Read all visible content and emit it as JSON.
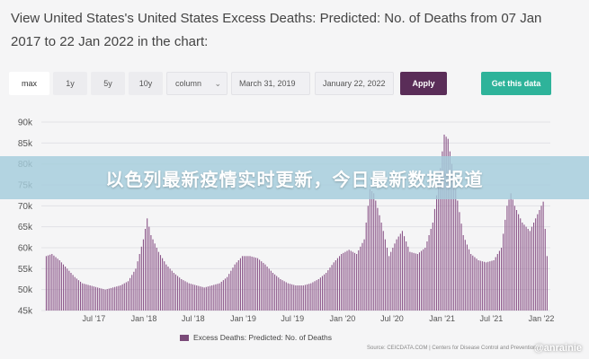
{
  "header": {
    "title": "View United States's United States Excess Deaths: Predicted: No. of Deaths from 07 Jan 2017 to 22 Jan 2022 in the chart:"
  },
  "controls": {
    "ranges": [
      "max",
      "1y",
      "5y",
      "10y"
    ],
    "active_range": "max",
    "chart_type": "column",
    "start_date": "March 31, 2019",
    "end_date": "January 22, 2022",
    "apply_label": "Apply",
    "get_data_label": "Get this data"
  },
  "banner": {
    "text": "以色列最新疫情实时更新，今日最新数据报道"
  },
  "legend": {
    "label": "Excess Deaths: Predicted: No. of Deaths"
  },
  "source": {
    "text": "Source: CEICDATA.COM | Centers for Disease Control and Prevention"
  },
  "watermark": {
    "text": "@anrainie"
  },
  "colors": {
    "bar": "#8a5488",
    "apply": "#5a2d58",
    "get_data": "#2eb39a"
  },
  "chart_data": {
    "type": "bar",
    "title": "",
    "xlabel": "",
    "ylabel": "",
    "ylim": [
      45000,
      90000
    ],
    "y_ticks": [
      45000,
      50000,
      55000,
      60000,
      65000,
      70000,
      75000,
      80000,
      85000,
      90000
    ],
    "y_tick_labels": [
      "45k",
      "50k",
      "55k",
      "60k",
      "65k",
      "70k",
      "75k",
      "80k",
      "85k",
      "90k"
    ],
    "x_tick_labels": [
      "Jul '17",
      "Jan '18",
      "Jul '18",
      "Jan '19",
      "Jul '19",
      "Jan '20",
      "Jul '20",
      "Jan '21",
      "Jul '21",
      "Jan '22"
    ],
    "x_tick_dates": [
      "2017-07-01",
      "2018-01-01",
      "2018-07-01",
      "2019-01-01",
      "2019-07-01",
      "2020-01-01",
      "2020-07-01",
      "2021-01-01",
      "2021-07-01",
      "2022-01-01"
    ],
    "series": [
      {
        "name": "Excess Deaths: Predicted: No. of Deaths",
        "points": [
          [
            "2017-01-07",
            58000
          ],
          [
            "2017-01-28",
            58500
          ],
          [
            "2017-02-25",
            57000
          ],
          [
            "2017-03-25",
            55000
          ],
          [
            "2017-04-22",
            53000
          ],
          [
            "2017-05-20",
            51500
          ],
          [
            "2017-06-17",
            51000
          ],
          [
            "2017-07-15",
            50500
          ],
          [
            "2017-08-12",
            50000
          ],
          [
            "2017-09-09",
            50500
          ],
          [
            "2017-10-07",
            51000
          ],
          [
            "2017-11-04",
            52000
          ],
          [
            "2017-12-02",
            55000
          ],
          [
            "2017-12-30",
            62000
          ],
          [
            "2018-01-13",
            67000
          ],
          [
            "2018-01-27",
            63000
          ],
          [
            "2018-02-24",
            59000
          ],
          [
            "2018-03-24",
            56000
          ],
          [
            "2018-04-21",
            54000
          ],
          [
            "2018-05-19",
            52500
          ],
          [
            "2018-06-16",
            51500
          ],
          [
            "2018-07-14",
            51000
          ],
          [
            "2018-08-11",
            50500
          ],
          [
            "2018-09-08",
            51000
          ],
          [
            "2018-10-06",
            51500
          ],
          [
            "2018-11-03",
            53000
          ],
          [
            "2018-12-01",
            56000
          ],
          [
            "2018-12-29",
            58000
          ],
          [
            "2019-01-26",
            58000
          ],
          [
            "2019-02-23",
            57500
          ],
          [
            "2019-03-23",
            56000
          ],
          [
            "2019-04-20",
            54000
          ],
          [
            "2019-05-18",
            52500
          ],
          [
            "2019-06-15",
            51500
          ],
          [
            "2019-07-13",
            51000
          ],
          [
            "2019-08-10",
            51000
          ],
          [
            "2019-09-07",
            51500
          ],
          [
            "2019-10-05",
            52500
          ],
          [
            "2019-11-02",
            54000
          ],
          [
            "2019-11-30",
            56500
          ],
          [
            "2019-12-28",
            58500
          ],
          [
            "2020-01-25",
            59500
          ],
          [
            "2020-02-22",
            58500
          ],
          [
            "2020-03-21",
            62000
          ],
          [
            "2020-04-11",
            74000
          ],
          [
            "2020-04-25",
            73000
          ],
          [
            "2020-05-23",
            66000
          ],
          [
            "2020-06-20",
            58000
          ],
          [
            "2020-07-18",
            62000
          ],
          [
            "2020-08-08",
            64000
          ],
          [
            "2020-09-05",
            59000
          ],
          [
            "2020-10-03",
            58500
          ],
          [
            "2020-10-31",
            60000
          ],
          [
            "2020-11-28",
            66000
          ],
          [
            "2020-12-26",
            79000
          ],
          [
            "2021-01-09",
            87000
          ],
          [
            "2021-01-23",
            86000
          ],
          [
            "2021-02-20",
            74000
          ],
          [
            "2021-03-20",
            63000
          ],
          [
            "2021-04-17",
            58500
          ],
          [
            "2021-05-15",
            57000
          ],
          [
            "2021-06-12",
            56500
          ],
          [
            "2021-07-10",
            57000
          ],
          [
            "2021-08-07",
            60000
          ],
          [
            "2021-08-28",
            70000
          ],
          [
            "2021-09-11",
            73000
          ],
          [
            "2021-09-25",
            70000
          ],
          [
            "2021-10-23",
            66000
          ],
          [
            "2021-11-20",
            64000
          ],
          [
            "2021-12-18",
            68000
          ],
          [
            "2022-01-08",
            71000
          ],
          [
            "2022-01-22",
            58000
          ]
        ]
      }
    ],
    "grid": true,
    "legend_position": "bottom"
  }
}
